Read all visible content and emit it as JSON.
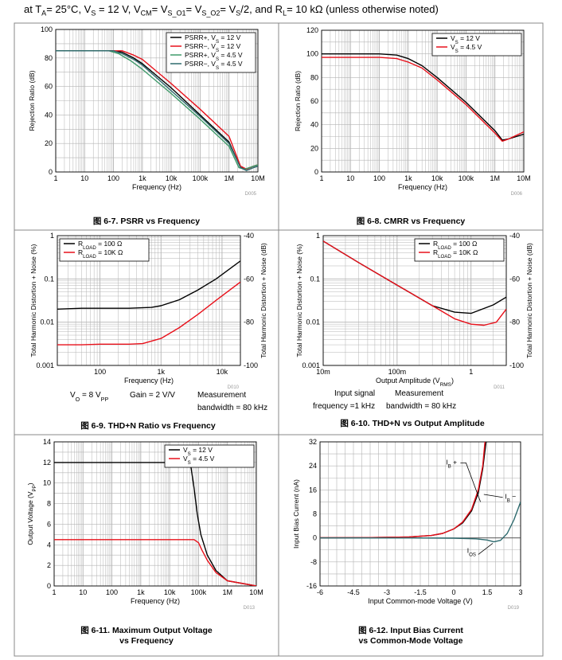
{
  "header": {
    "parts": [
      "at T",
      "A",
      "= 25°C, V",
      "S",
      " = 12 V, V",
      "CM",
      "= V",
      "S_O1",
      "= V",
      "S_O2",
      "= V",
      "S",
      "/2, and R",
      "L",
      "= 10 kΩ  (unless otherwise noted)"
    ]
  },
  "colors": {
    "black": "#000000",
    "red": "#e8101a",
    "green": "#3f9a6a",
    "teal": "#2d6a6e",
    "grid": "#b4b4b4",
    "frame": "#888888"
  },
  "charts": [
    {
      "id": "psrr",
      "type": "line",
      "caption": "图 6-7. PSRR vs Frequency",
      "xlabel": "Frequency (Hz)",
      "ylabel": "Rejection Ratio (dB)",
      "code": "D005",
      "xscale": "log",
      "xlim": [
        1,
        10000000
      ],
      "ylim": [
        0,
        100
      ],
      "xticks": [
        {
          "v": 1,
          "label": "1"
        },
        {
          "v": 10,
          "label": "10"
        },
        {
          "v": 100,
          "label": "100"
        },
        {
          "v": 1000,
          "label": "1k"
        },
        {
          "v": 10000,
          "label": "10k"
        },
        {
          "v": 100000,
          "label": "100k"
        },
        {
          "v": 1000000,
          "label": "1M"
        },
        {
          "v": 10000000,
          "label": "10M"
        }
      ],
      "yticks": [
        {
          "v": 0,
          "label": "0"
        },
        {
          "v": 20,
          "label": "20"
        },
        {
          "v": 40,
          "label": "40"
        },
        {
          "v": 60,
          "label": "60"
        },
        {
          "v": 80,
          "label": "80"
        },
        {
          "v": 100,
          "label": "100"
        }
      ],
      "legend": "top-right",
      "series": [
        {
          "name": "PSRR+, V_S = 12 V",
          "color": "black",
          "x": [
            1,
            100,
            200,
            500,
            1000,
            10000,
            100000,
            1000000,
            2500000,
            4000000,
            7000000,
            10000000
          ],
          "y": [
            85,
            85,
            84,
            80,
            76,
            59,
            40,
            21,
            3,
            2,
            4,
            5
          ]
        },
        {
          "name": "PSRR−, V_S = 12 V",
          "color": "red",
          "x": [
            1,
            100,
            200,
            500,
            1000,
            10000,
            100000,
            1000000,
            2500000,
            4000000,
            7000000,
            10000000
          ],
          "y": [
            85,
            85,
            85,
            82,
            79,
            62,
            44,
            25,
            4,
            2,
            4,
            5
          ]
        },
        {
          "name": "PSRR+, V_S = 4.5 V",
          "color": "green",
          "x": [
            1,
            70,
            150,
            400,
            1000,
            10000,
            100000,
            1000000,
            2200000,
            3500000,
            7000000,
            10000000
          ],
          "y": [
            85,
            85,
            83,
            78,
            72,
            55,
            37,
            18,
            3,
            2,
            4,
            5
          ]
        },
        {
          "name": "PSRR−, V_S = 4.5 V",
          "color": "teal",
          "x": [
            1,
            100,
            200,
            500,
            1000,
            10000,
            100000,
            1000000,
            2500000,
            4000000,
            7000000,
            10000000
          ],
          "y": [
            85,
            85,
            83,
            79,
            75,
            57,
            39,
            20,
            3,
            1,
            3,
            4
          ]
        }
      ]
    },
    {
      "id": "cmrr",
      "type": "line",
      "caption": "图 6-8. CMRR vs Frequency",
      "xlabel": "Frequency (Hz)",
      "ylabel": "Rejection Ratio (dB)",
      "code": "D006",
      "xscale": "log",
      "xlim": [
        1,
        10000000
      ],
      "ylim": [
        0,
        120
      ],
      "xticks": [
        {
          "v": 1,
          "label": "1"
        },
        {
          "v": 10,
          "label": "10"
        },
        {
          "v": 100,
          "label": "100"
        },
        {
          "v": 1000,
          "label": "1k"
        },
        {
          "v": 10000,
          "label": "10k"
        },
        {
          "v": 100000,
          "label": "100k"
        },
        {
          "v": 1000000,
          "label": "1M"
        },
        {
          "v": 10000000,
          "label": "10M"
        }
      ],
      "yticks": [
        {
          "v": 0,
          "label": "0"
        },
        {
          "v": 20,
          "label": "20"
        },
        {
          "v": 40,
          "label": "40"
        },
        {
          "v": 60,
          "label": "60"
        },
        {
          "v": 80,
          "label": "80"
        },
        {
          "v": 100,
          "label": "100"
        },
        {
          "v": 120,
          "label": "120"
        }
      ],
      "legend": "top-right",
      "series": [
        {
          "name": "V_S = 12 V",
          "color": "black",
          "x": [
            1,
            100,
            400,
            1000,
            3000,
            10000,
            100000,
            1000000,
            1800000,
            3000000,
            10000000
          ],
          "y": [
            100,
            100,
            99,
            96,
            90,
            80,
            59,
            35,
            27,
            28,
            32
          ]
        },
        {
          "name": "V_S = 4.5 V",
          "color": "red",
          "x": [
            1,
            100,
            400,
            1000,
            3000,
            10000,
            100000,
            1000000,
            1800000,
            3000000,
            10000000
          ],
          "y": [
            97,
            97,
            96,
            93,
            88,
            78,
            57,
            33,
            26,
            28,
            34
          ]
        }
      ]
    },
    {
      "id": "thdn-freq",
      "type": "line",
      "caption": "图 6-9. THD+N Ratio vs Frequency",
      "xlabel": "Frequency (Hz)",
      "ylabel": "Total Harmonic Distortion + Noise (%)",
      "ylabel2": "Total Harmonic Distortion + Noise (dB)",
      "code": "D010",
      "xscale": "log",
      "yscale": "log",
      "xlim": [
        20,
        20000
      ],
      "ylim": [
        0.001,
        1
      ],
      "xticks": [
        {
          "v": 100,
          "label": "100"
        },
        {
          "v": 1000,
          "label": "1k"
        },
        {
          "v": 10000,
          "label": "10k"
        }
      ],
      "yticks": [
        {
          "v": 0.001,
          "label": "0.001"
        },
        {
          "v": 0.01,
          "label": "0.01"
        },
        {
          "v": 0.1,
          "label": "0.1"
        },
        {
          "v": 1,
          "label": "1"
        }
      ],
      "yticks2": [
        {
          "v": 0.001,
          "label": "-100"
        },
        {
          "v": 0.01,
          "label": "-80"
        },
        {
          "v": 0.1,
          "label": "-60"
        },
        {
          "v": 1,
          "label": "-40"
        }
      ],
      "legend": "top-left",
      "notes": [
        "V_O = 8 V_PP",
        "Gain = 2 V/V",
        "Measurement",
        "bandwidth = 80 kHz"
      ],
      "series": [
        {
          "name": "R_LOAD = 100 Ω",
          "color": "black",
          "x": [
            20,
            50,
            100,
            300,
            700,
            1000,
            2000,
            4000,
            8000,
            20000
          ],
          "y": [
            0.02,
            0.021,
            0.021,
            0.021,
            0.022,
            0.024,
            0.033,
            0.055,
            0.1,
            0.26
          ]
        },
        {
          "name": "R_LOAD = 10K Ω",
          "color": "red",
          "x": [
            20,
            50,
            100,
            200,
            300,
            500,
            1000,
            2000,
            4000,
            8000,
            20000
          ],
          "y": [
            0.003,
            0.003,
            0.0031,
            0.0031,
            0.0031,
            0.0032,
            0.0042,
            0.0075,
            0.015,
            0.032,
            0.085
          ]
        }
      ]
    },
    {
      "id": "thdn-amp",
      "type": "line",
      "caption": "图 6-10. THD+N vs Output Amplitude",
      "xlabel": "Output Amplitude (V_RMS)",
      "ylabel": "Total Harmonic Distortion + Noise (%)",
      "ylabel2": "Total Harmonic Distortion + Noise (dB)",
      "code": "D011",
      "xscale": "log",
      "yscale": "log",
      "xlim": [
        0.01,
        3
      ],
      "ylim": [
        0.001,
        1
      ],
      "xticks": [
        {
          "v": 0.01,
          "label": "10m"
        },
        {
          "v": 0.1,
          "label": "100m"
        },
        {
          "v": 1,
          "label": "1"
        }
      ],
      "yticks": [
        {
          "v": 0.001,
          "label": "0.001"
        },
        {
          "v": 0.01,
          "label": "0.01"
        },
        {
          "v": 0.1,
          "label": "0.1"
        },
        {
          "v": 1,
          "label": "1"
        }
      ],
      "yticks2": [
        {
          "v": 0.001,
          "label": "-100"
        },
        {
          "v": 0.01,
          "label": "-80"
        },
        {
          "v": 0.1,
          "label": "-60"
        },
        {
          "v": 1,
          "label": "-40"
        }
      ],
      "legend": "top-right",
      "notes": [
        "Input signal",
        "Measurement",
        "frequency =1 kHz",
        "bandwidth = 80 kHz"
      ],
      "series": [
        {
          "name": "R_LOAD = 100 Ω",
          "color": "black",
          "x": [
            0.01,
            0.03,
            0.1,
            0.3,
            0.6,
            1.0,
            2.0,
            3.0
          ],
          "y": [
            0.75,
            0.24,
            0.072,
            0.024,
            0.017,
            0.016,
            0.025,
            0.038
          ]
        },
        {
          "name": "R_LOAD = 10K Ω",
          "color": "red",
          "x": [
            0.01,
            0.03,
            0.1,
            0.3,
            0.6,
            1.0,
            1.5,
            2.2,
            3.0
          ],
          "y": [
            0.75,
            0.24,
            0.072,
            0.024,
            0.012,
            0.009,
            0.0085,
            0.01,
            0.02
          ]
        }
      ]
    },
    {
      "id": "max-out",
      "type": "line",
      "caption": "图 6-11. Maximum Output Voltage",
      "caption2": "vs Frequency",
      "xlabel": "Frequency (Hz)",
      "ylabel": "Output Voltage (V_PP)",
      "code": "D013",
      "xscale": "log",
      "xlim": [
        1,
        10000000
      ],
      "ylim": [
        0,
        14
      ],
      "xticks": [
        {
          "v": 1,
          "label": "1"
        },
        {
          "v": 10,
          "label": "10"
        },
        {
          "v": 100,
          "label": "100"
        },
        {
          "v": 1000,
          "label": "1k"
        },
        {
          "v": 10000,
          "label": "10k"
        },
        {
          "v": 100000,
          "label": "100k"
        },
        {
          "v": 1000000,
          "label": "1M"
        },
        {
          "v": 10000000,
          "label": "10M"
        }
      ],
      "yticks": [
        {
          "v": 0,
          "label": "0"
        },
        {
          "v": 2,
          "label": "2"
        },
        {
          "v": 4,
          "label": "4"
        },
        {
          "v": 6,
          "label": "6"
        },
        {
          "v": 8,
          "label": "8"
        },
        {
          "v": 10,
          "label": "10"
        },
        {
          "v": 12,
          "label": "12"
        },
        {
          "v": 14,
          "label": "14"
        }
      ],
      "legend": "top-right",
      "series": [
        {
          "name": "V_S = 12 V",
          "color": "black",
          "x": [
            1,
            40000,
            55000,
            70000,
            90000,
            120000,
            200000,
            400000,
            1000000,
            10000000
          ],
          "y": [
            12,
            12,
            11.5,
            9.5,
            7,
            5,
            3,
            1.5,
            0.5,
            0
          ]
        },
        {
          "name": "V_S = 4.5 V",
          "color": "red",
          "x": [
            1,
            70000,
            100000,
            130000,
            200000,
            400000,
            1000000,
            10000000
          ],
          "y": [
            4.5,
            4.5,
            4.2,
            3.5,
            2.5,
            1.3,
            0.5,
            0
          ]
        }
      ]
    },
    {
      "id": "ibias",
      "type": "line",
      "caption": "图 6-12. Input Bias Current",
      "caption2": "vs Common-Mode Voltage",
      "xlabel": "Input Common-mode Voltage (V)",
      "ylabel": "Input Bias Current (nA)",
      "code": "D019",
      "xscale": "linear",
      "xlim": [
        -6,
        3
      ],
      "ylim": [
        -16,
        32
      ],
      "xticks": [
        {
          "v": -6,
          "label": "-6"
        },
        {
          "v": -4.5,
          "label": "-4.5"
        },
        {
          "v": -3,
          "label": "-3"
        },
        {
          "v": -1.5,
          "label": "-1.5"
        },
        {
          "v": 0,
          "label": "0"
        },
        {
          "v": 1.5,
          "label": "1.5"
        },
        {
          "v": 3,
          "label": "3"
        }
      ],
      "yticks": [
        {
          "v": -16,
          "label": "-16"
        },
        {
          "v": -8,
          "label": "-8"
        },
        {
          "v": 0,
          "label": "0"
        },
        {
          "v": 8,
          "label": "8"
        },
        {
          "v": 16,
          "label": "16"
        },
        {
          "v": 24,
          "label": "24"
        },
        {
          "v": 32,
          "label": "32"
        }
      ],
      "annotations": [
        {
          "text": "I_B +"
        },
        {
          "text": "I_B −"
        },
        {
          "text": "I_OS"
        }
      ],
      "series": [
        {
          "name": "I_B +",
          "color": "black",
          "x": [
            -6,
            -4,
            -2,
            -1,
            -0.5,
            0,
            0.4,
            0.8,
            1.1,
            1.3,
            1.45
          ],
          "y": [
            0.05,
            0.1,
            0.3,
            0.8,
            1.5,
            3,
            5,
            9,
            15,
            23,
            32
          ]
        },
        {
          "name": "I_B −",
          "color": "red",
          "x": [
            -6,
            -4,
            -2,
            -1,
            -0.5,
            0,
            0.4,
            0.8,
            1.1,
            1.3,
            1.4
          ],
          "y": [
            0.05,
            0.1,
            0.3,
            0.8,
            1.5,
            3,
            5.3,
            9.5,
            16,
            24,
            32
          ]
        },
        {
          "name": "I_OS",
          "color": "teal",
          "x": [
            -6,
            -2,
            0,
            1.0,
            1.5,
            1.8,
            2.1,
            2.4,
            2.7,
            3.0
          ],
          "y": [
            0,
            0,
            -0.1,
            -0.3,
            -0.7,
            -1.3,
            -0.8,
            1.5,
            6,
            12
          ]
        }
      ]
    }
  ]
}
